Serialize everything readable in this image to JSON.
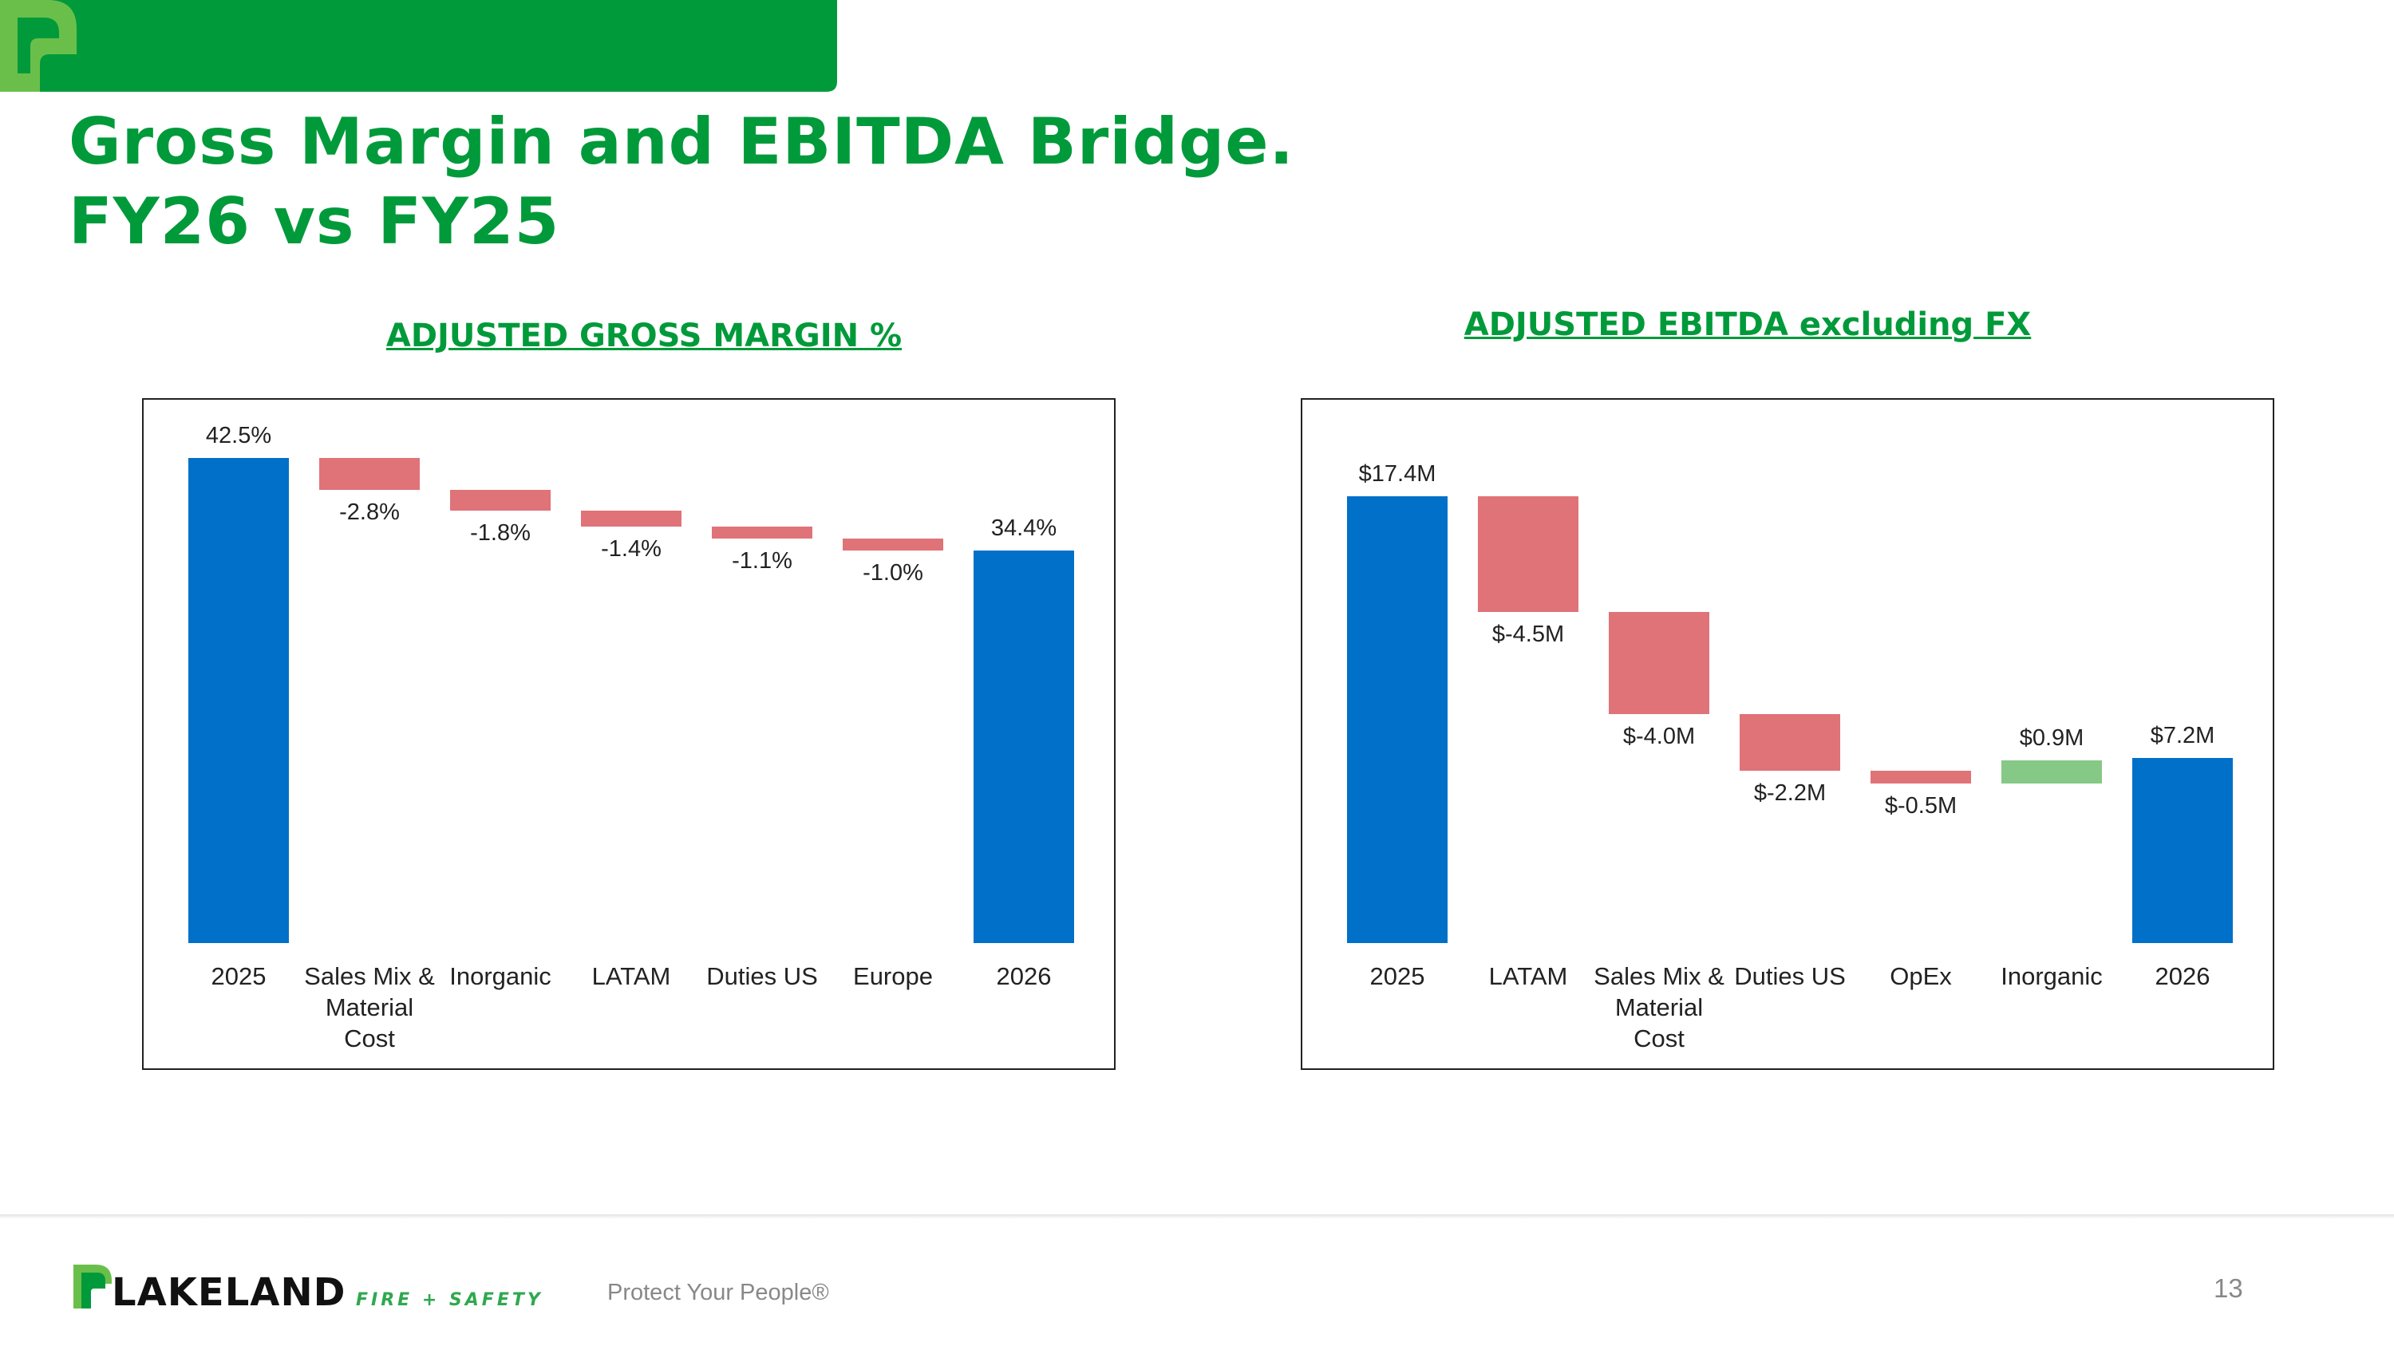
{
  "header": {
    "title": "Gross Margin and EBITDA Bridge.\nFY26 vs FY25"
  },
  "chart_data": [
    {
      "type": "waterfall",
      "title": "ADJUSTED GROSS MARGIN %",
      "categories": [
        "2025",
        "Sales Mix & Material Cost",
        "Inorganic",
        "LATAM",
        "Duties US",
        "Europe",
        "2026"
      ],
      "values": [
        42.5,
        -2.8,
        -1.8,
        -1.4,
        -1.1,
        -1.0,
        34.4
      ],
      "value_labels": [
        "42.5%",
        "-2.8%",
        "-1.8%",
        "-1.4%",
        "-1.1%",
        "-1.0%",
        "34.4%"
      ],
      "ylim": [
        0,
        45
      ],
      "colors": {
        "total": "#0070c8",
        "decrease": "#df7378",
        "increase": "#86c986"
      }
    },
    {
      "type": "waterfall",
      "title": "ADJUSTED EBITDA excluding FX",
      "categories": [
        "2025",
        "LATAM",
        "Sales Mix & Material Cost",
        "Duties US",
        "OpEx",
        "Inorganic",
        "2026"
      ],
      "values": [
        17.4,
        -4.5,
        -4.0,
        -2.2,
        -0.5,
        0.9,
        7.2
      ],
      "value_labels": [
        "$17.4M",
        "$-4.5M",
        "$-4.0M",
        "$-2.2M",
        "$-0.5M",
        "$0.9M",
        "$7.2M"
      ],
      "ylim": [
        0,
        20
      ],
      "colors": {
        "total": "#0070c8",
        "decrease": "#df7378",
        "increase": "#86c986"
      }
    }
  ],
  "footer": {
    "brand": "LAKELAND",
    "brand_sub": "FIRE + SAFETY",
    "tagline": "Protect Your People®",
    "page_number": 13
  }
}
